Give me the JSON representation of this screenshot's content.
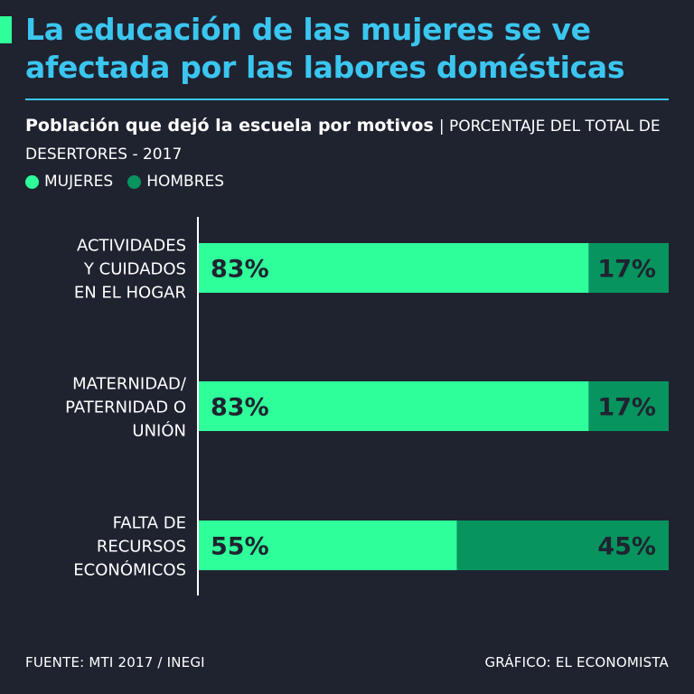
{
  "header": {
    "title": "La educación de las mujeres se ve afectada por las labores domésticas",
    "subtitle_strong": "Población que dejó la escuela por motivos",
    "subtitle_rest": "| PORCENTAJE DEL TOTAL DE DESERTORES - 2017"
  },
  "colors": {
    "mujeres": "#2fff9a",
    "hombres": "#07945f",
    "title": "#3bc6f0",
    "background": "#1f2330"
  },
  "chart_data": {
    "type": "bar",
    "orientation": "horizontal",
    "stacked": true,
    "categories": [
      [
        "ACTIVIDADES",
        "Y CUIDADOS",
        "EN EL HOGAR"
      ],
      [
        "MATERNIDAD/",
        "PATERNIDAD O",
        "UNIÓN"
      ],
      [
        "FALTA DE",
        "RECURSOS",
        "ECONÓMICOS"
      ]
    ],
    "series": [
      {
        "name": "MUJERES",
        "values": [
          83,
          83,
          55
        ],
        "labels": [
          "83%",
          "83%",
          "55%"
        ]
      },
      {
        "name": "HOMBRES",
        "values": [
          17,
          17,
          45
        ],
        "labels": [
          "17%",
          "17%",
          "45%"
        ]
      }
    ],
    "xlim": [
      0,
      100
    ],
    "grid": false,
    "legend": "top-left"
  },
  "footer": {
    "source": "FUENTE: MTI 2017 / INEGI",
    "credit": "GRÁFICO: EL ECONOMISTA"
  }
}
